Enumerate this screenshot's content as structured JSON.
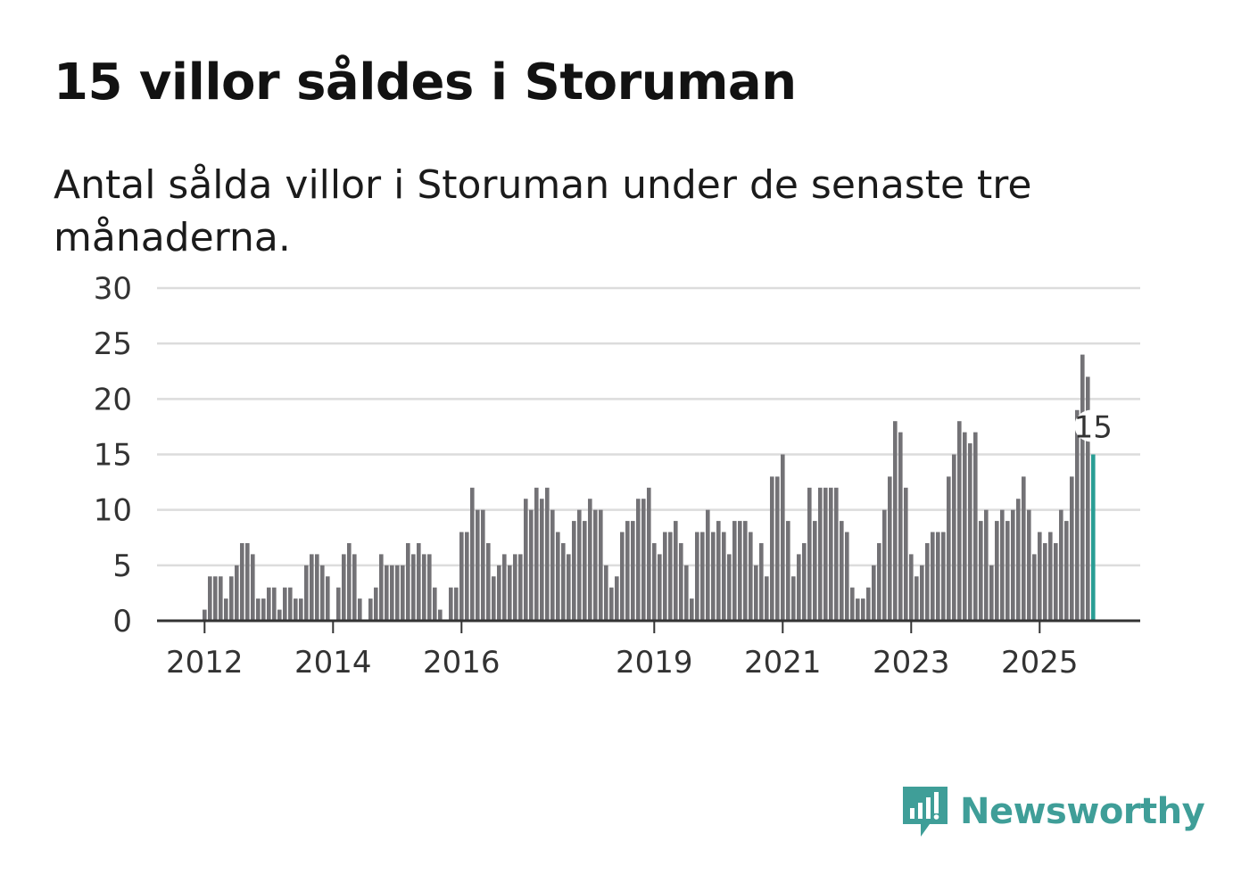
{
  "title": "15 villor såldes i Storuman",
  "subtitle": "Antal sålda villor i Storuman under de senaste tre månaderna.",
  "brand": {
    "name": "Newsworthy",
    "icon": "newsworthy-logo-icon",
    "color": "#3f9e98"
  },
  "colors": {
    "bar": "#737276",
    "highlight": "#2a9d94",
    "grid": "#dcdcdc",
    "axis": "#333333"
  },
  "chart_data": {
    "type": "bar",
    "title": "15 villor såldes i Storuman",
    "xlabel": "",
    "ylabel": "",
    "ylim": [
      0,
      30
    ],
    "yticks": [
      "0",
      "5",
      "10",
      "15",
      "20",
      "25",
      "30"
    ],
    "xticks": [
      {
        "label": "2012",
        "index": 0
      },
      {
        "label": "2014",
        "index": 24
      },
      {
        "label": "2016",
        "index": 48
      },
      {
        "label": "2019",
        "index": 84
      },
      {
        "label": "2021",
        "index": 108
      },
      {
        "label": "2023",
        "index": 132
      },
      {
        "label": "2025",
        "index": 156
      }
    ],
    "start": "2012-01",
    "frequency": "monthly",
    "values": [
      1,
      4,
      4,
      4,
      2,
      4,
      5,
      7,
      7,
      6,
      2,
      2,
      3,
      3,
      1,
      3,
      3,
      2,
      2,
      5,
      6,
      6,
      5,
      4,
      0,
      3,
      6,
      7,
      6,
      2,
      0,
      2,
      3,
      6,
      5,
      5,
      5,
      5,
      7,
      6,
      7,
      6,
      6,
      3,
      1,
      0,
      3,
      3,
      8,
      8,
      12,
      10,
      10,
      7,
      4,
      5,
      6,
      5,
      6,
      6,
      11,
      10,
      12,
      11,
      12,
      10,
      8,
      7,
      6,
      9,
      10,
      9,
      11,
      10,
      10,
      5,
      3,
      4,
      8,
      9,
      9,
      11,
      11,
      12,
      7,
      6,
      8,
      8,
      9,
      7,
      5,
      2,
      8,
      8,
      10,
      8,
      9,
      8,
      6,
      9,
      9,
      9,
      8,
      5,
      7,
      4,
      13,
      13,
      15,
      9,
      4,
      6,
      7,
      12,
      9,
      12,
      12,
      12,
      12,
      9,
      8,
      3,
      2,
      2,
      3,
      5,
      7,
      10,
      13,
      18,
      17,
      12,
      6,
      4,
      5,
      7,
      8,
      8,
      8,
      13,
      15,
      18,
      17,
      16,
      17,
      9,
      10,
      5,
      9,
      10,
      9,
      10,
      11,
      13,
      10,
      6,
      8,
      7,
      8,
      7,
      10,
      9,
      13,
      19,
      24,
      22,
      15
    ],
    "highlight_index": 166,
    "highlight_label": "15"
  }
}
